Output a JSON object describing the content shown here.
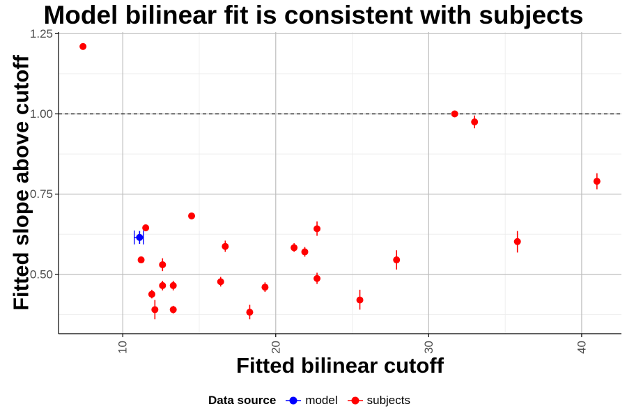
{
  "chart_data": {
    "type": "scatter",
    "title": "Model bilinear fit is consistent with subjects",
    "xlabel": "Fitted bilinear cutoff",
    "ylabel": "Fitted slope above cutoff",
    "xlim": [
      5.8,
      42.6
    ],
    "ylim": [
      0.315,
      1.255
    ],
    "x_ticks": [
      10,
      20,
      30,
      40
    ],
    "y_ticks": [
      0.5,
      0.75,
      1.0,
      1.25
    ],
    "x_tick_labels": [
      "10",
      "20",
      "30",
      "40"
    ],
    "y_tick_labels": [
      "0.50",
      "0.75",
      "1.00",
      "1.25"
    ],
    "grid": true,
    "reference_line": {
      "y": 1.0,
      "style": "dashed"
    },
    "legend": {
      "title": "Data source",
      "position": "bottom"
    },
    "series": [
      {
        "name": "model",
        "color": "#0000ff",
        "points": [
          {
            "x": 11.1,
            "y": 0.615,
            "y_lo": 0.595,
            "y_hi": 0.635,
            "x_lo": 10.75,
            "x_hi": 11.35
          }
        ]
      },
      {
        "name": "subjects",
        "color": "#ff0000",
        "points": [
          {
            "x": 7.4,
            "y": 1.21,
            "y_lo": 1.205,
            "y_hi": 1.215
          },
          {
            "x": 11.2,
            "y": 0.545,
            "y_lo": 0.54,
            "y_hi": 0.55
          },
          {
            "x": 11.5,
            "y": 0.645,
            "y_lo": 0.64,
            "y_hi": 0.65
          },
          {
            "x": 11.9,
            "y": 0.438,
            "y_lo": 0.425,
            "y_hi": 0.452
          },
          {
            "x": 12.1,
            "y": 0.39,
            "y_lo": 0.36,
            "y_hi": 0.42
          },
          {
            "x": 12.6,
            "y": 0.53,
            "y_lo": 0.51,
            "y_hi": 0.55
          },
          {
            "x": 12.6,
            "y": 0.465,
            "y_lo": 0.45,
            "y_hi": 0.48
          },
          {
            "x": 13.3,
            "y": 0.465,
            "y_lo": 0.45,
            "y_hi": 0.48
          },
          {
            "x": 13.3,
            "y": 0.39,
            "y_lo": 0.378,
            "y_hi": 0.402
          },
          {
            "x": 14.5,
            "y": 0.682,
            "y_lo": 0.678,
            "y_hi": 0.686
          },
          {
            "x": 16.4,
            "y": 0.477,
            "y_lo": 0.462,
            "y_hi": 0.492
          },
          {
            "x": 16.7,
            "y": 0.587,
            "y_lo": 0.57,
            "y_hi": 0.605
          },
          {
            "x": 18.3,
            "y": 0.382,
            "y_lo": 0.36,
            "y_hi": 0.405
          },
          {
            "x": 19.3,
            "y": 0.46,
            "y_lo": 0.445,
            "y_hi": 0.475
          },
          {
            "x": 21.2,
            "y": 0.583,
            "y_lo": 0.57,
            "y_hi": 0.597
          },
          {
            "x": 21.9,
            "y": 0.57,
            "y_lo": 0.555,
            "y_hi": 0.585
          },
          {
            "x": 22.7,
            "y": 0.642,
            "y_lo": 0.62,
            "y_hi": 0.665
          },
          {
            "x": 22.7,
            "y": 0.487,
            "y_lo": 0.47,
            "y_hi": 0.505
          },
          {
            "x": 25.5,
            "y": 0.42,
            "y_lo": 0.39,
            "y_hi": 0.452
          },
          {
            "x": 27.9,
            "y": 0.545,
            "y_lo": 0.515,
            "y_hi": 0.575
          },
          {
            "x": 31.7,
            "y": 1.0,
            "y_lo": 0.993,
            "y_hi": 1.007
          },
          {
            "x": 33.0,
            "y": 0.975,
            "y_lo": 0.955,
            "y_hi": 0.995
          },
          {
            "x": 35.8,
            "y": 0.602,
            "y_lo": 0.568,
            "y_hi": 0.635
          },
          {
            "x": 41.0,
            "y": 0.79,
            "y_lo": 0.765,
            "y_hi": 0.815
          }
        ]
      }
    ]
  }
}
